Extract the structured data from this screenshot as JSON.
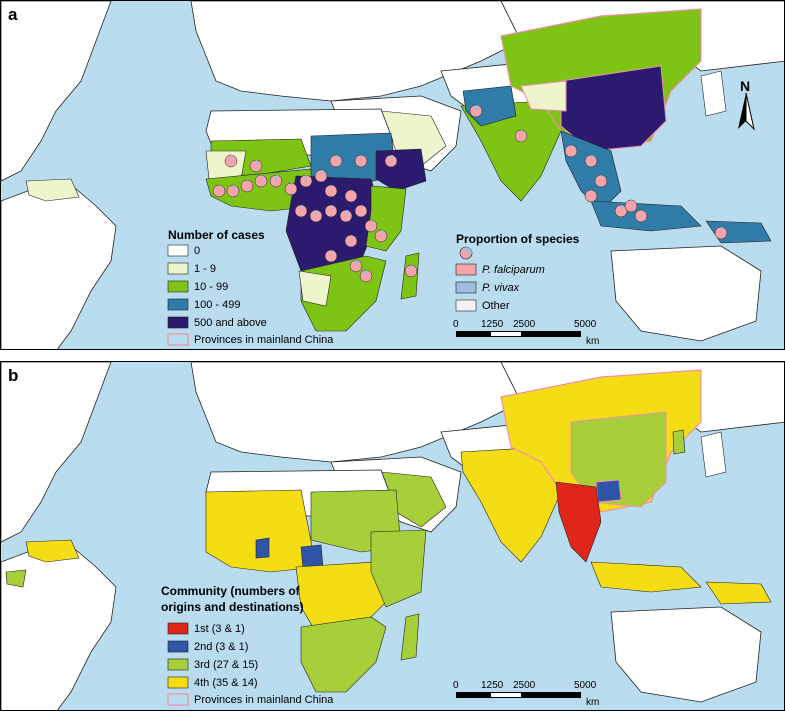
{
  "panel_a": {
    "letter": "a",
    "north_label": "N",
    "legend_cases": {
      "title": "Number of cases",
      "items": [
        {
          "label": "0",
          "color": "#ffffff"
        },
        {
          "label": "1 - 9",
          "color": "#eef5cc"
        },
        {
          "label": "10 - 99",
          "color": "#7ec414"
        },
        {
          "label": "100 - 499",
          "color": "#2f7ca8"
        },
        {
          "label": "500 and above",
          "color": "#2b1a6e"
        }
      ],
      "provinces_label": "Provinces in mainland China",
      "provinces_color": "#ef8fa8"
    },
    "legend_species": {
      "title": "Proportion of species",
      "items": [
        {
          "label": "P. falciparum",
          "color": "#f4a4ab"
        },
        {
          "label": "P. vivax",
          "color": "#9fbde3"
        },
        {
          "label": "Other",
          "color": "#f2f2f2"
        }
      ]
    },
    "scale": {
      "ticks": [
        "0",
        "1250",
        "2500",
        "5000"
      ],
      "unit": "km"
    }
  },
  "panel_b": {
    "letter": "b",
    "legend_community": {
      "title_line1": "Community (numbers of",
      "title_line2": "origins and destinations)",
      "items": [
        {
          "label": "1st (3 & 1)",
          "color": "#e0261b"
        },
        {
          "label": "2nd (3 & 1)",
          "color": "#2f55a8"
        },
        {
          "label": "3rd (27 & 15)",
          "color": "#a7cf3a"
        },
        {
          "label": "4th (35 & 14)",
          "color": "#f5dd16"
        }
      ],
      "provinces_label": "Provinces in mainland China",
      "provinces_color": "#ef8fa8"
    },
    "scale": {
      "ticks": [
        "0",
        "1250",
        "2500",
        "5000"
      ],
      "unit": "km"
    }
  },
  "colors": {
    "ocean": "#b9dcef",
    "border": "#222222"
  }
}
